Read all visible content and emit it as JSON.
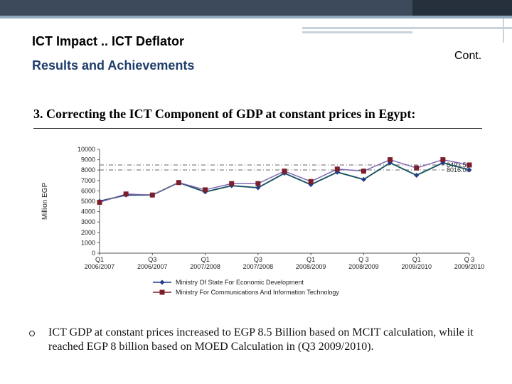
{
  "slide": {
    "title": "ICT Impact .. ICT Deflator",
    "subtitle": "Results and Achievements",
    "cont_label": "Cont.",
    "heading": "3. Correcting the ICT Component of GDP at constant prices in Egypt:",
    "bullet_text": "ICT GDP at constant prices increased to EGP 8.5 Billion based on MCIT calculation, while it reached EGP 8 billion based on MOED Calculation in (Q3 2009/2010)."
  },
  "chart_data": {
    "type": "line",
    "title": "",
    "xlabel": "",
    "ylabel": "Million EGP",
    "ylim": [
      0,
      10000
    ],
    "yticks": [
      0,
      1000,
      2000,
      3000,
      4000,
      5000,
      6000,
      7000,
      8000,
      9000,
      10000
    ],
    "categories": [
      "Q1 2006/2007",
      "Q2 2006/2007",
      "Q3 2006/2007",
      "Q4 2006/2007",
      "Q1 2007/2008",
      "Q2 2007/2008",
      "Q3 2007/2008",
      "Q4 2007/2008",
      "Q1 2008/2009",
      "Q2 2008/2009",
      "Q3 2008/2009",
      "Q4 2008/2009",
      "Q1 2009/2010",
      "Q2 2009/2010",
      "Q3 2009/2010"
    ],
    "tick_labels": [
      {
        "index": 0,
        "line1": "Q1",
        "line2": "2006/2007"
      },
      {
        "index": 2,
        "line1": "Q3",
        "line2": "2006/2007"
      },
      {
        "index": 4,
        "line1": "Q1",
        "line2": "2007/2008"
      },
      {
        "index": 6,
        "line1": "Q3",
        "line2": "2007/2008"
      },
      {
        "index": 8,
        "line1": "Q1",
        "line2": "2008/2009"
      },
      {
        "index": 10,
        "line1": "Q 3",
        "line2": "2008/2009"
      },
      {
        "index": 12,
        "line1": "Q1",
        "line2": "2009/2010"
      },
      {
        "index": 14,
        "line1": "Q 3",
        "line2": "2009/2010"
      }
    ],
    "series": [
      {
        "name": "Ministry Of State For Economic Development",
        "color": "#1f3c88",
        "marker": "diamond",
        "smooth_line_color": "#2e8b3a",
        "values": [
          5000,
          5600,
          5600,
          6800,
          5900,
          6500,
          6300,
          7700,
          6600,
          7800,
          7100,
          8700,
          7500,
          8700,
          8016
        ]
      },
      {
        "name": "Ministry For Communications And Information Technology",
        "color": "#7a1f2b",
        "marker": "square",
        "values": [
          4900,
          5700,
          5600,
          6800,
          6100,
          6700,
          6700,
          7900,
          6900,
          8100,
          7900,
          9000,
          8200,
          9000,
          8494
        ]
      }
    ],
    "reference_lines": [
      {
        "value": 8493.54,
        "label": "8493.54"
      },
      {
        "value": 8016.0,
        "label": "8016.00"
      }
    ],
    "legend_position": "bottom"
  }
}
